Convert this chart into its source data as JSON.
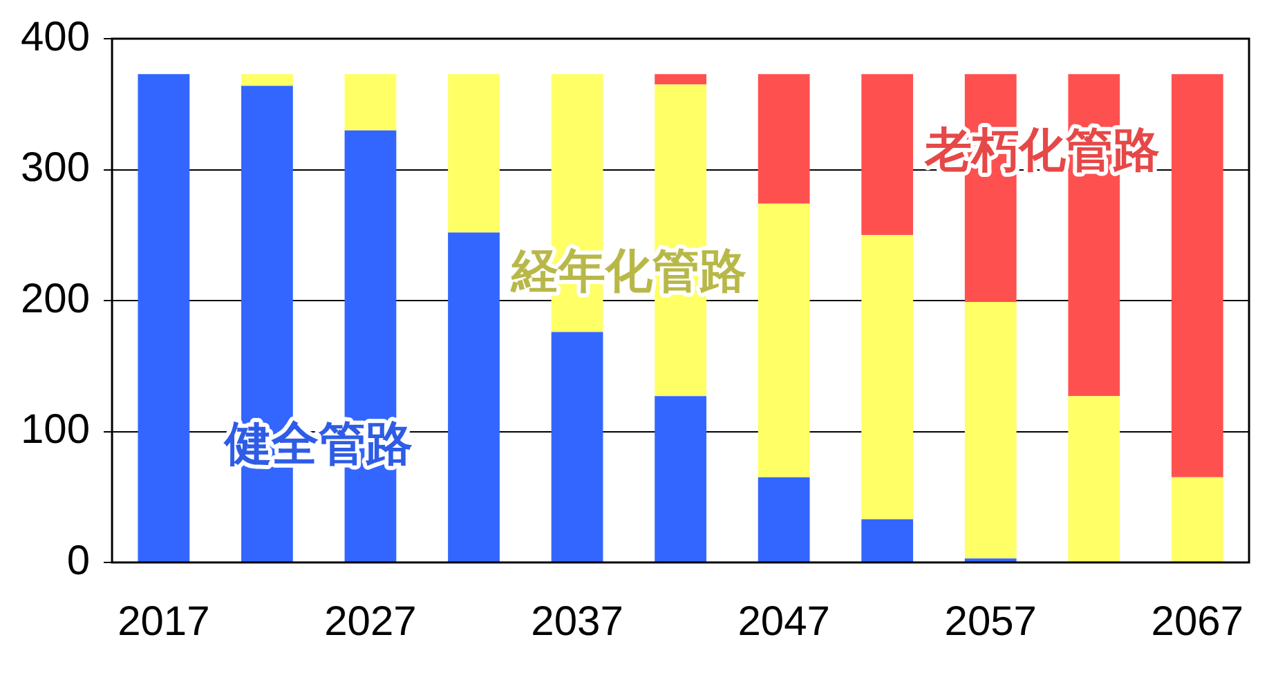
{
  "chart_data": {
    "type": "bar",
    "stacked": true,
    "categories": [
      "2017",
      null,
      "2027",
      null,
      "2037",
      null,
      "2047",
      null,
      "2057",
      null,
      "2067"
    ],
    "series": [
      {
        "name": "健全管路",
        "color": "#3366ff",
        "values": [
          373,
          364,
          330,
          252,
          176,
          127,
          65,
          33,
          3,
          0,
          0
        ]
      },
      {
        "name": "経年化管路",
        "color": "#ffff66",
        "values": [
          0,
          9,
          43,
          121,
          197,
          238,
          209,
          217,
          196,
          127,
          65
        ]
      },
      {
        "name": "老朽化管路",
        "color": "#ff5050",
        "values": [
          0,
          0,
          0,
          0,
          0,
          8,
          99,
          123,
          174,
          246,
          308
        ]
      }
    ],
    "ylim": [
      0,
      400
    ],
    "yticks": [
      0,
      100,
      200,
      300,
      400
    ],
    "grid": "y",
    "legend": false
  }
}
